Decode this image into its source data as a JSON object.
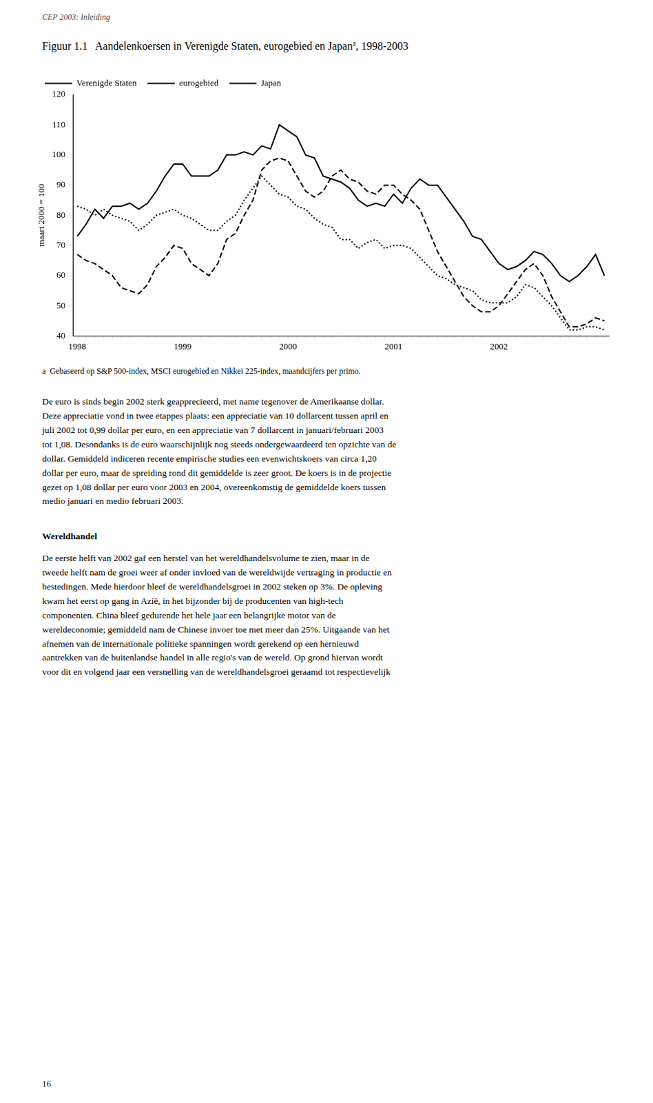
{
  "chart_data": {
    "type": "line",
    "title": [
      "Figuur 1.1   Aandelenkoersen in Verenigde Staten, eurogebied en Japan",
      "a",
      ", 1998-2003"
    ],
    "ylabel": "maart 2000 = 100",
    "categories": [
      "1998",
      null,
      null,
      null,
      null,
      null,
      null,
      null,
      null,
      null,
      null,
      null,
      "1999",
      null,
      null,
      null,
      null,
      null,
      null,
      null,
      null,
      null,
      null,
      null,
      "2000",
      null,
      null,
      null,
      null,
      null,
      null,
      null,
      null,
      null,
      null,
      null,
      "2001",
      null,
      null,
      null,
      null,
      null,
      null,
      null,
      null,
      null,
      null,
      null,
      "2002",
      null,
      null,
      null,
      null,
      null,
      null,
      null,
      null,
      null,
      null,
      null,
      null
    ],
    "series": [
      {
        "name": "Verenigde Staten",
        "color": "#000000",
        "line_style": "solid",
        "values": [
          73,
          77,
          82,
          79,
          83,
          83,
          84,
          82,
          84,
          88,
          93,
          97,
          97,
          93,
          93,
          93,
          95,
          100,
          100,
          101,
          100,
          103,
          102,
          110,
          108,
          106,
          100,
          99,
          93,
          92,
          91,
          89,
          85,
          83,
          84,
          83,
          87,
          84,
          89,
          92,
          90,
          90,
          86,
          82,
          78,
          73,
          72,
          68,
          64,
          62,
          63,
          65,
          68,
          67,
          64,
          60,
          58,
          60,
          63,
          67,
          60
        ]
      },
      {
        "name": "eurogebied",
        "color": "#000000",
        "line_style": "dashed",
        "values": [
          67,
          65,
          64,
          62,
          60,
          56,
          55,
          54,
          57,
          63,
          66,
          70,
          69,
          64,
          62,
          60,
          64,
          72,
          74,
          80,
          85,
          95,
          98,
          99,
          98,
          93,
          88,
          86,
          88,
          93,
          95,
          92,
          91,
          88,
          87,
          90,
          90,
          87,
          85,
          82,
          75,
          68,
          63,
          58,
          53,
          50,
          48,
          48,
          50,
          54,
          58,
          62,
          64,
          60,
          53,
          48,
          43,
          43,
          44,
          46,
          45
        ]
      },
      {
        "name": "Japan",
        "color": "#000000",
        "line_style": "dotted",
        "values": [
          83,
          82,
          80,
          82,
          80,
          79,
          78,
          75,
          77,
          80,
          81,
          82,
          80,
          79,
          77,
          75,
          75,
          78,
          80,
          85,
          89,
          93,
          90,
          87,
          86,
          83,
          82,
          79,
          77,
          76,
          72,
          72,
          69,
          71,
          72,
          69,
          70,
          70,
          69,
          66,
          63,
          60,
          59,
          57,
          56,
          55,
          52,
          51,
          51,
          51,
          53,
          57,
          56,
          53,
          50,
          46,
          42,
          42,
          43,
          43,
          42
        ]
      }
    ],
    "ylim": [
      40,
      120
    ],
    "yticks": [
      40,
      50,
      60,
      70,
      80,
      90,
      100,
      110,
      120
    ],
    "grid": false,
    "legend": "upper left",
    "annotations": [
      "CEP 2003: Inleiding",
      "a  Gebaseerd op S&P 500-index, MSCI eurogebied en Nikkei 225-index, maandcijfers per primo.",
      "De euro is sinds begin 2002 sterk geapprecieerd, met name tegenover de Amerikaanse dollar.\nDeze appreciatie vond in twee etappes plaats: een appreciatie van 10 dollarcent tussen april en\njuli 2002 tot 0,99 dollar per euro, en een appreciatie van 7 dollarcent in januari/februari 2003\ntot 1,08. Desondanks is de euro waarschijnlijk nog steeds ondergewaardeerd ten opzichte van de\ndollar. Gemiddeld indiceren recente empirische studies een evenwichtskoers van circa 1,20\ndollar per euro, maar de spreiding rond dit gemiddelde is zeer groot. De koers is in de projectie\ngezet op 1,08 dollar per euro voor 2003 en 2004, overeenkomstig de gemiddelde koers tussen\nmedio januari en medio februari 2003.",
      "Wereldhandel",
      "De eerste helft van 2002 gaf een herstel van het wereldhandelsvolume te zien, maar in de\ntweede helft nam de groei weer af onder invloed van de wereldwijde vertraging in productie en\nbestedingen. Mede hierdoor bleef de wereldhandelsgroei in 2002 steken op 3%. De opleving\nkwam het eerst op gang in Azië, in het bijzonder bij de producenten van high-tech\ncomponenten. China bleef gedurende het hele jaar een belangrijke motor van de\nwereldeconomie; gemiddeld nam de Chinese invoer toe met meer dan 25%. Uitgaande van het\nafnemen van de internationale politieke spanningen wordt gerekend op een hernieuwd\naantrekken van de buitenlandse handel in alle regio's van de wereld. Op grond hiervan wordt\nvoor dit en volgend jaar een versnelling van de wereldhandelsgroei geraamd tot respectievelijk",
      "16"
    ]
  }
}
